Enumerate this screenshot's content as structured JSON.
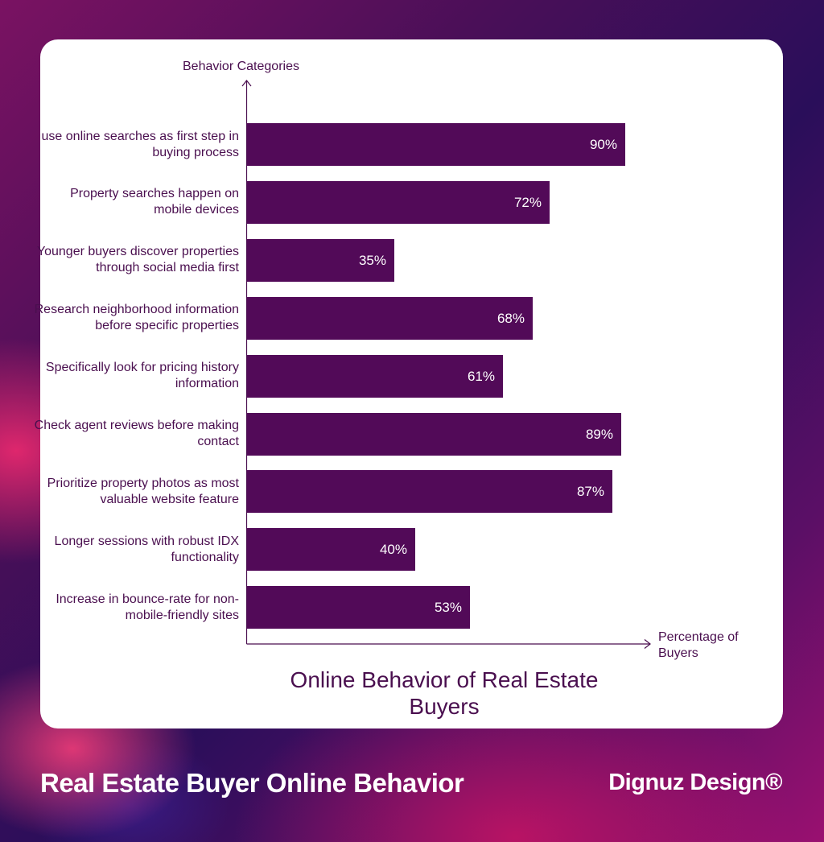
{
  "footer": {
    "title": "Real Estate Buyer Online Behavior",
    "brand": "Dignuz Design®"
  },
  "chart_data": {
    "type": "bar",
    "orientation": "horizontal",
    "title": "Online Behavior of Real Estate Buyers",
    "ylabel": "Behavior Categories",
    "xlabel": "Percentage of Buyers",
    "xlim": [
      0,
      100
    ],
    "grid": false,
    "bar_color": "#520a58",
    "categories": [
      "use online searches as first step in buying process",
      "Property searches happen on mobile devices",
      "Younger buyers discover properties through social media first",
      "Research neighborhood information before specific properties",
      "Specifically look for pricing history information",
      "Check agent reviews before making contact",
      "Prioritize property photos as most valuable website feature",
      "Longer sessions with robust IDX functionality",
      "Increase in bounce-rate for non-mobile-friendly sites"
    ],
    "values": [
      90,
      72,
      35,
      68,
      61,
      89,
      87,
      40,
      53
    ],
    "value_labels": [
      "90%",
      "72%",
      "35%",
      "68%",
      "61%",
      "89%",
      "87%",
      "40%",
      "53%"
    ]
  }
}
